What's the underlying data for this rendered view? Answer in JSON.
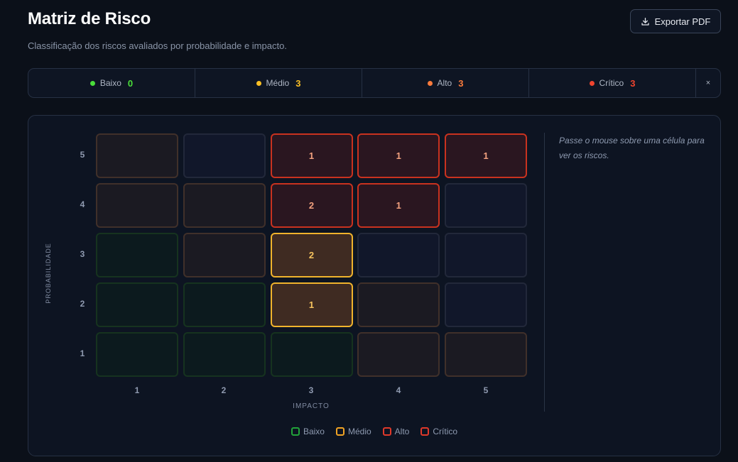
{
  "header": {
    "title": "Matriz de Risco",
    "subtitle": "Classificação dos riscos avaliados por probabilidade e impacto.",
    "export_label": "Exportar PDF"
  },
  "summary": {
    "items": [
      {
        "label": "Baixo",
        "count": "0",
        "color": "#4ade3a"
      },
      {
        "label": "Médio",
        "count": "3",
        "color": "#fbbf24"
      },
      {
        "label": "Alto",
        "count": "3",
        "color": "#fb7b3c"
      },
      {
        "label": "Crítico",
        "count": "3",
        "color": "#f0442e"
      }
    ],
    "close_label": "×"
  },
  "matrix": {
    "y_axis_label": "PROBABILIDADE",
    "x_axis_label": "IMPACTO",
    "y_ticks": [
      "5",
      "4",
      "3",
      "2",
      "1"
    ],
    "x_ticks": [
      "1",
      "2",
      "3",
      "4",
      "5"
    ],
    "rows": [
      {
        "probability": 5,
        "cells": [
          {
            "impact": 1,
            "level": "medio",
            "count": ""
          },
          {
            "impact": 2,
            "level": "empty",
            "count": ""
          },
          {
            "impact": 3,
            "level": "critico",
            "count": "1"
          },
          {
            "impact": 4,
            "level": "critico",
            "count": "1"
          },
          {
            "impact": 5,
            "level": "critico",
            "count": "1"
          }
        ]
      },
      {
        "probability": 4,
        "cells": [
          {
            "impact": 1,
            "level": "medio",
            "count": ""
          },
          {
            "impact": 2,
            "level": "medio",
            "count": ""
          },
          {
            "impact": 3,
            "level": "critico",
            "count": "2"
          },
          {
            "impact": 4,
            "level": "critico",
            "count": "1"
          },
          {
            "impact": 5,
            "level": "empty",
            "count": ""
          }
        ]
      },
      {
        "probability": 3,
        "cells": [
          {
            "impact": 1,
            "level": "baixo",
            "count": ""
          },
          {
            "impact": 2,
            "level": "medio",
            "count": ""
          },
          {
            "impact": 3,
            "level": "medio-active",
            "count": "2"
          },
          {
            "impact": 4,
            "level": "empty",
            "count": ""
          },
          {
            "impact": 5,
            "level": "empty",
            "count": ""
          }
        ]
      },
      {
        "probability": 2,
        "cells": [
          {
            "impact": 1,
            "level": "baixo",
            "count": ""
          },
          {
            "impact": 2,
            "level": "baixo",
            "count": ""
          },
          {
            "impact": 3,
            "level": "medio-active",
            "count": "1"
          },
          {
            "impact": 4,
            "level": "medio",
            "count": ""
          },
          {
            "impact": 5,
            "level": "empty",
            "count": ""
          }
        ]
      },
      {
        "probability": 1,
        "cells": [
          {
            "impact": 1,
            "level": "baixo",
            "count": ""
          },
          {
            "impact": 2,
            "level": "baixo",
            "count": ""
          },
          {
            "impact": 3,
            "level": "baixo",
            "count": ""
          },
          {
            "impact": 4,
            "level": "medio",
            "count": ""
          },
          {
            "impact": 5,
            "level": "medio",
            "count": ""
          }
        ]
      }
    ],
    "hint": "Passe o mouse sobre uma célula para ver os riscos."
  },
  "legend": [
    {
      "label": "Baixo",
      "color": "#22a33a"
    },
    {
      "label": "Médio",
      "color": "#f0a324"
    },
    {
      "label": "Alto",
      "color": "#e0392a"
    },
    {
      "label": "Crítico",
      "color": "#e0392a"
    }
  ]
}
